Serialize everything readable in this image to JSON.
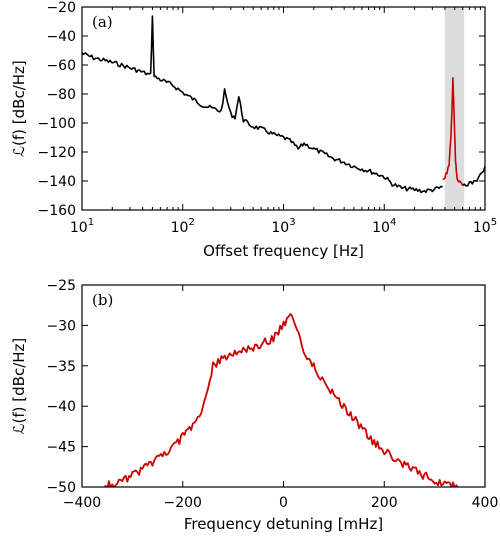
{
  "chart_data": [
    {
      "type": "line",
      "panel_label": "(a)",
      "xlabel": "Offset frequency [Hz]",
      "ylabel": "ℒ(f) [dBc/Hz]",
      "xscale": "log",
      "xlim": [
        10,
        100000
      ],
      "ylim": [
        -160,
        -20
      ],
      "xticks": [
        10,
        100,
        1000,
        10000,
        100000
      ],
      "xtick_labels": [
        {
          "base": "10",
          "exp": "1"
        },
        {
          "base": "10",
          "exp": "2"
        },
        {
          "base": "10",
          "exp": "3"
        },
        {
          "base": "10",
          "exp": "4"
        },
        {
          "base": "10",
          "exp": "5"
        }
      ],
      "yticks": [
        -160,
        -140,
        -120,
        -100,
        -80,
        -60,
        -40,
        -20
      ],
      "highlight": {
        "x_range": [
          40000,
          62000
        ],
        "color": "#dddddd"
      },
      "series": [
        {
          "color": "#000000",
          "x": [
            10,
            13,
            17,
            22,
            30,
            40,
            48,
            50,
            52,
            60,
            80,
            100,
            130,
            160,
            200,
            240,
            260,
            300,
            330,
            360,
            400,
            440,
            480,
            600,
            700,
            800,
            1000,
            1200,
            1400,
            1600,
            2000,
            2500,
            3000,
            4000,
            5000,
            7000,
            10000,
            12000,
            15000,
            20000,
            25000,
            30000,
            35000,
            38000
          ],
          "y": [
            -52,
            -55,
            -57,
            -59,
            -62,
            -65,
            -67,
            -27,
            -68,
            -70,
            -74,
            -79,
            -84,
            -88,
            -90,
            -92,
            -78,
            -94,
            -96,
            -82,
            -98,
            -100,
            -102,
            -104,
            -106,
            -108,
            -110,
            -113,
            -118,
            -114,
            -118,
            -121,
            -124,
            -127,
            -130,
            -133,
            -137,
            -142,
            -145,
            -146,
            -147,
            -146,
            -145,
            -144
          ]
        },
        {
          "color": "#cc0000",
          "x": [
            38000,
            40000,
            42000,
            44000,
            46000,
            47000,
            48000,
            49000,
            50000,
            51000,
            52000,
            53000,
            55000,
            57000,
            60000
          ],
          "y": [
            -140,
            -138,
            -134,
            -128,
            -110,
            -90,
            -70,
            -88,
            -108,
            -126,
            -134,
            -138,
            -141,
            -142,
            -143
          ]
        },
        {
          "color": "#000000",
          "x": [
            60000,
            70000,
            80000,
            90000,
            100000
          ],
          "y": [
            -143,
            -142,
            -140,
            -136,
            -130
          ]
        }
      ]
    },
    {
      "type": "line",
      "panel_label": "(b)",
      "xlabel": "Frequency detuning [mHz]",
      "ylabel": "ℒ(f) [dBc/Hz]",
      "xlim": [
        -400,
        400
      ],
      "ylim": [
        -50,
        -25
      ],
      "xticks": [
        -400,
        -200,
        0,
        200,
        400
      ],
      "xtick_labels": [
        "−400",
        "−200",
        "0",
        "200",
        "400"
      ],
      "yticks": [
        -50,
        -45,
        -40,
        -35,
        -30,
        -25
      ],
      "ytick_labels": [
        "−50",
        "−45",
        "−40",
        "−35",
        "−30",
        "−25"
      ],
      "series": [
        {
          "color": "#cc0000",
          "x": [
            -360,
            -330,
            -300,
            -280,
            -260,
            -240,
            -220,
            -200,
            -180,
            -160,
            -150,
            -140,
            -120,
            -100,
            -80,
            -60,
            -40,
            -20,
            0,
            10,
            20,
            30,
            40,
            60,
            80,
            100,
            120,
            140,
            160,
            180,
            200,
            220,
            240,
            260,
            280,
            300,
            320,
            340,
            350
          ],
          "y": [
            -50,
            -49.5,
            -48.5,
            -47.8,
            -47,
            -46,
            -45,
            -43.8,
            -42.5,
            -40.5,
            -37.5,
            -35,
            -34,
            -33.5,
            -33.2,
            -32.8,
            -32.2,
            -31.5,
            -30,
            -28.5,
            -29,
            -31,
            -33,
            -35,
            -37,
            -38.5,
            -40,
            -41.5,
            -43,
            -44.5,
            -45.5,
            -46.5,
            -47.3,
            -48,
            -48.6,
            -49.2,
            -49.6,
            -49.9,
            -50
          ]
        }
      ]
    }
  ]
}
